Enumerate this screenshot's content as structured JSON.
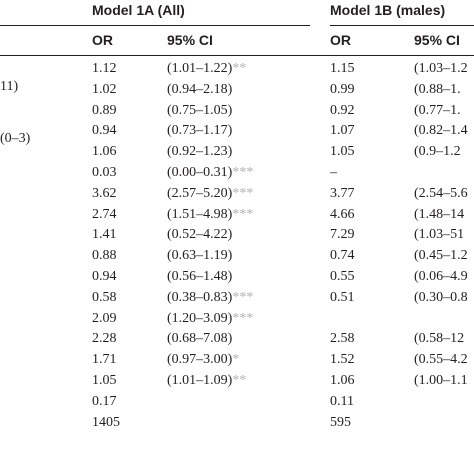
{
  "table": {
    "model_1a_title": "Model 1A (All)",
    "model_1b_title": "Model 1B (males)",
    "col_or": "OR",
    "col_ci": "95% CI",
    "row_fragments": [
      "11)",
      "(0–3)"
    ],
    "rows": [
      {
        "or_a": "1.12",
        "ci_a": "(1.01–1.22)",
        "sig_a": "**",
        "or_b": "1.15",
        "ci_b": "(1.03–1.2"
      },
      {
        "or_a": "1.02",
        "ci_a": "(0.94–2.18)",
        "sig_a": "",
        "or_b": "0.99",
        "ci_b": "(0.88–1."
      },
      {
        "or_a": "0.89",
        "ci_a": "(0.75–1.05)",
        "sig_a": "",
        "or_b": "0.92",
        "ci_b": "(0.77–1."
      },
      {
        "or_a": "0.94",
        "ci_a": "(0.73–1.17)",
        "sig_a": "",
        "or_b": "1.07",
        "ci_b": "(0.82–1.4"
      },
      {
        "or_a": "1.06",
        "ci_a": "(0.92–1.23)",
        "sig_a": "",
        "or_b": "1.05",
        "ci_b": "(0.9–1.2"
      },
      {
        "or_a": "0.03",
        "ci_a": "(0.00–0.31)",
        "sig_a": "***",
        "or_b": "–",
        "ci_b": ""
      },
      {
        "or_a": "3.62",
        "ci_a": "(2.57–5.20)",
        "sig_a": "***",
        "or_b": "3.77",
        "ci_b": "(2.54–5.6"
      },
      {
        "or_a": "2.74",
        "ci_a": "(1.51–4.98)",
        "sig_a": "***",
        "or_b": "4.66",
        "ci_b": "(1.48–14"
      },
      {
        "or_a": "1.41",
        "ci_a": "(0.52–4.22)",
        "sig_a": "",
        "or_b": "7.29",
        "ci_b": "(1.03–51"
      },
      {
        "or_a": "0.88",
        "ci_a": "(0.63–1.19)",
        "sig_a": "",
        "or_b": "0.74",
        "ci_b": "(0.45–1.2"
      },
      {
        "or_a": "0.94",
        "ci_a": "(0.56–1.48)",
        "sig_a": "",
        "or_b": "0.55",
        "ci_b": "(0.06–4.9"
      },
      {
        "or_a": "0.58",
        "ci_a": "(0.38–0.83)",
        "sig_a": "***",
        "or_b": "0.51",
        "ci_b": "(0.30–0.8"
      },
      {
        "or_a": "2.09",
        "ci_a": "(1.20–3.09)",
        "sig_a": "***",
        "or_b": "",
        "ci_b": ""
      },
      {
        "or_a": "2.28",
        "ci_a": "(0.68–7.08)",
        "sig_a": "",
        "or_b": "2.58",
        "ci_b": "(0.58–12"
      },
      {
        "or_a": "1.71",
        "ci_a": "(0.97–3.00)",
        "sig_a": "*",
        "or_b": "1.52",
        "ci_b": "(0.55–4.2"
      },
      {
        "or_a": "1.05",
        "ci_a": "(1.01–1.09)",
        "sig_a": "**",
        "or_b": "1.06",
        "ci_b": "(1.00–1.1"
      },
      {
        "or_a": "0.17",
        "ci_a": "",
        "sig_a": "",
        "or_b": "0.11",
        "ci_b": ""
      },
      {
        "or_a": "1405",
        "ci_a": "",
        "sig_a": "",
        "or_b": "595",
        "ci_b": ""
      }
    ]
  }
}
